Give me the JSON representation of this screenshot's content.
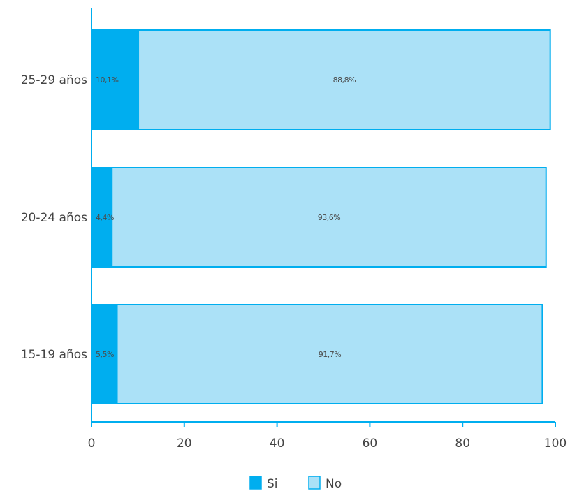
{
  "colors": {
    "si_fill": "#00aeef",
    "no_fill": "#abe1f7",
    "bar_stroke": "#00aeef",
    "axis": "#00aeef"
  },
  "chart_data": {
    "type": "bar",
    "orientation": "horizontal",
    "stacked": true,
    "categories": [
      "25-29 años",
      "20-24 años",
      "15-19 años"
    ],
    "series": [
      {
        "name": "Si",
        "values": [
          10.1,
          4.4,
          5.5
        ],
        "labels": [
          "10,1%",
          "4,4%",
          "5,5%"
        ]
      },
      {
        "name": "No",
        "values": [
          88.8,
          93.6,
          91.7
        ],
        "labels": [
          "88,8%",
          "93,6%",
          "91,7%"
        ]
      }
    ],
    "xlim": [
      0,
      100
    ],
    "xticks": [
      0,
      20,
      40,
      60,
      80,
      100
    ],
    "xtick_labels": [
      "0",
      "20",
      "40",
      "60",
      "80",
      "100"
    ],
    "grid": false,
    "legend_position": "bottom"
  }
}
